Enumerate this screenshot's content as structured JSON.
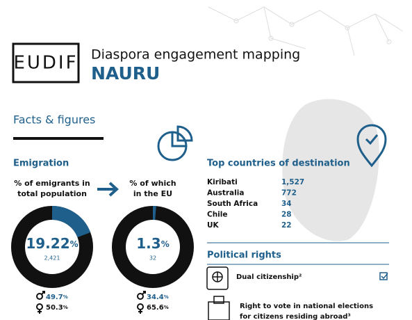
{
  "header": {
    "logo": "EUDIF",
    "title": "Diaspora engagement mapping",
    "country": "NAURU"
  },
  "section": "Facts & figures",
  "emigration": {
    "heading": "Emigration",
    "unit": "%",
    "emigrants": {
      "label_line1": "% of emigrants in",
      "label_line2": "total population",
      "value": 19.22,
      "count": "2,421",
      "male": 49.7,
      "female": 50.3
    },
    "eu": {
      "label_line1": "% of which",
      "label_line2": "in the EU",
      "value": 1.3,
      "count": "32",
      "male": 34.4,
      "female": 65.6
    }
  },
  "destinations": {
    "heading": "Top countries of destination",
    "rows": [
      [
        "Kiribati",
        "1,527"
      ],
      [
        "Australia",
        "772"
      ],
      [
        "South Africa",
        "34"
      ],
      [
        "Chile",
        "28"
      ],
      [
        "UK",
        "22"
      ]
    ]
  },
  "political_rights": {
    "heading": "Political rights",
    "items": [
      "Dual citizenship²",
      "Right to vote in national elections",
      "for citizens residing abroad³"
    ]
  }
}
